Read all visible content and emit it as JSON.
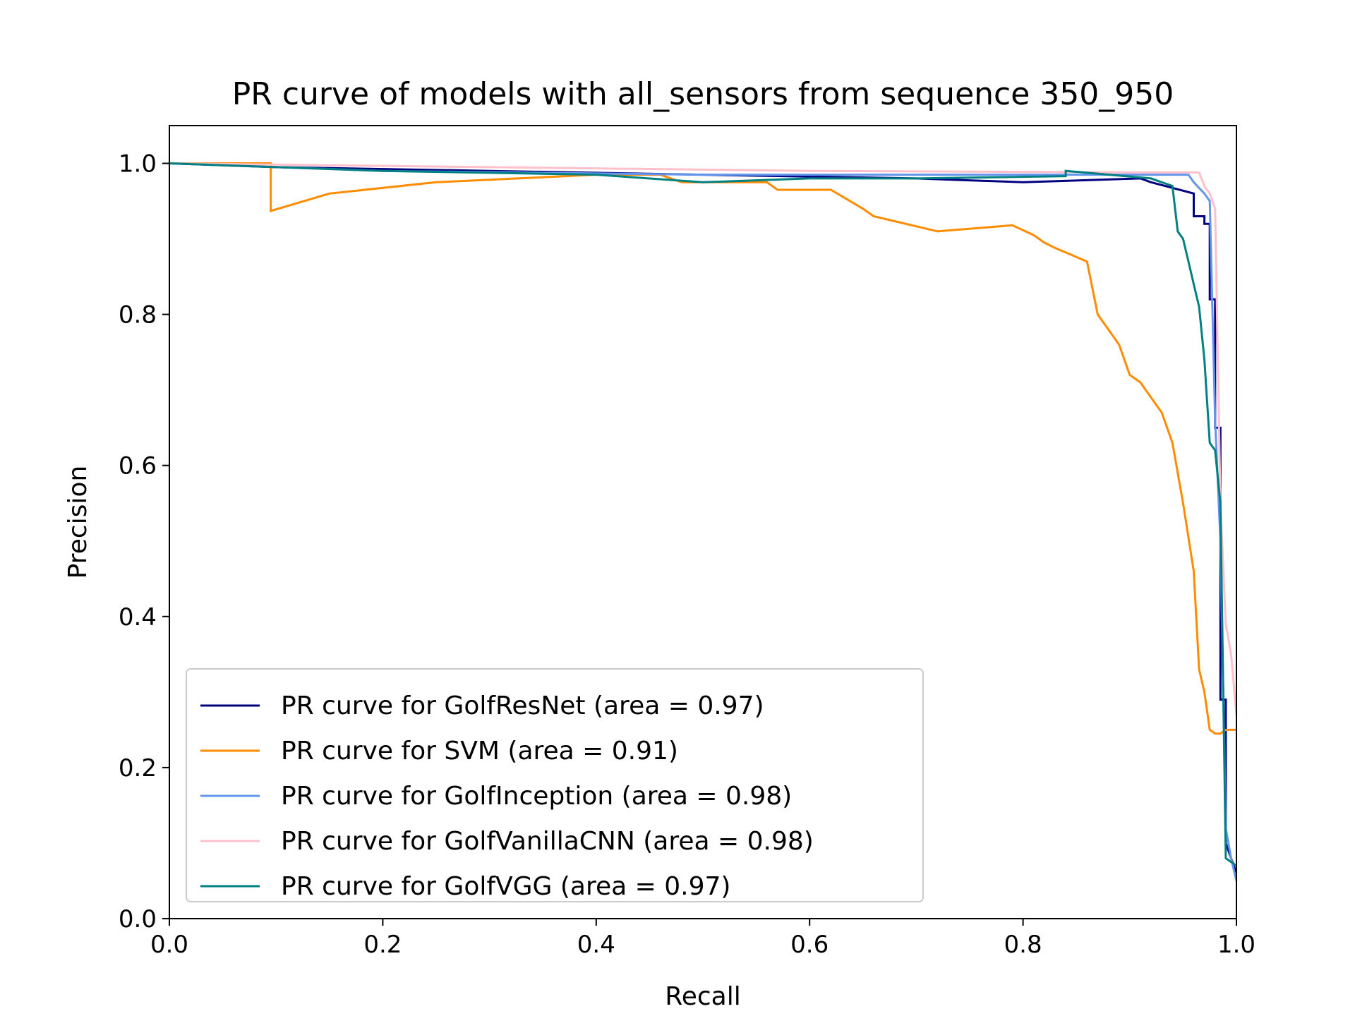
{
  "chart_data": {
    "type": "line",
    "title": "PR curve of models with all_sensors from sequence 350_950",
    "xlabel": "Recall",
    "ylabel": "Precision",
    "xlim": [
      0,
      1
    ],
    "ylim": [
      0,
      1.05
    ],
    "xticks": [
      0,
      0.2,
      0.4,
      0.6,
      0.8,
      1.0
    ],
    "xtick_labels": [
      "0.0",
      "0.2",
      "0.4",
      "0.6",
      "0.8",
      "1.0"
    ],
    "yticks": [
      0,
      0.2,
      0.4,
      0.6,
      0.8,
      1.0
    ],
    "ytick_labels": [
      "0.0",
      "0.2",
      "0.4",
      "0.6",
      "0.8",
      "1.0"
    ],
    "grid": false,
    "legend_position": "lower-left",
    "series": [
      {
        "name": "PR curve for GolfResNet (area = 0.97)",
        "color": "#000080",
        "x": [
          0.0,
          0.1,
          0.3,
          0.5,
          0.7,
          0.8,
          0.91,
          0.92,
          0.96,
          0.96,
          0.97,
          0.97,
          0.975,
          0.975,
          0.98,
          0.98,
          0.985,
          0.985,
          0.99,
          0.99,
          1.0
        ],
        "y": [
          1.0,
          0.995,
          0.99,
          0.985,
          0.98,
          0.975,
          0.98,
          0.975,
          0.96,
          0.93,
          0.93,
          0.92,
          0.92,
          0.82,
          0.82,
          0.65,
          0.65,
          0.29,
          0.29,
          0.1,
          0.06
        ]
      },
      {
        "name": "PR curve for SVM (area = 0.91)",
        "color": "#ff8c00",
        "x": [
          0.0,
          0.095,
          0.095,
          0.15,
          0.25,
          0.4,
          0.46,
          0.47,
          0.48,
          0.56,
          0.57,
          0.62,
          0.65,
          0.66,
          0.72,
          0.79,
          0.81,
          0.82,
          0.83,
          0.86,
          0.87,
          0.88,
          0.89,
          0.9,
          0.91,
          0.92,
          0.93,
          0.94,
          0.95,
          0.96,
          0.965,
          0.97,
          0.975,
          0.98,
          0.985,
          0.99,
          1.0
        ],
        "y": [
          1.0,
          1.0,
          0.937,
          0.96,
          0.975,
          0.985,
          0.985,
          0.98,
          0.975,
          0.975,
          0.965,
          0.965,
          0.94,
          0.93,
          0.91,
          0.918,
          0.905,
          0.895,
          0.888,
          0.87,
          0.8,
          0.78,
          0.76,
          0.72,
          0.71,
          0.69,
          0.67,
          0.63,
          0.55,
          0.46,
          0.33,
          0.3,
          0.25,
          0.245,
          0.245,
          0.25,
          0.25
        ]
      },
      {
        "name": "PR curve for GolfInception (area = 0.98)",
        "color": "#6495ed",
        "x": [
          0.0,
          0.2,
          0.5,
          0.8,
          0.9,
          0.94,
          0.955,
          0.96,
          0.97,
          0.975,
          0.98,
          0.985,
          0.99,
          0.995,
          1.0
        ],
        "y": [
          1.0,
          0.99,
          0.985,
          0.985,
          0.985,
          0.985,
          0.985,
          0.975,
          0.96,
          0.95,
          0.66,
          0.5,
          0.12,
          0.08,
          0.05
        ]
      },
      {
        "name": "PR curve for GolfVanillaCNN (area = 0.98)",
        "color": "#ffc0cb",
        "x": [
          0.0,
          0.3,
          0.6,
          0.9,
          0.95,
          0.965,
          0.97,
          0.975,
          0.98,
          0.985,
          0.99,
          0.995,
          1.0
        ],
        "y": [
          1.0,
          0.995,
          0.99,
          0.988,
          0.988,
          0.988,
          0.97,
          0.96,
          0.94,
          0.55,
          0.39,
          0.35,
          0.27
        ]
      },
      {
        "name": "PR curve for GolfVGG (area = 0.97)",
        "color": "#008080",
        "x": [
          0.0,
          0.2,
          0.4,
          0.5,
          0.6,
          0.7,
          0.84,
          0.84,
          0.92,
          0.93,
          0.94,
          0.945,
          0.95,
          0.955,
          0.96,
          0.965,
          0.97,
          0.975,
          0.98,
          0.985,
          0.99,
          1.0
        ],
        "y": [
          1.0,
          0.99,
          0.985,
          0.975,
          0.98,
          0.98,
          0.983,
          0.99,
          0.98,
          0.975,
          0.97,
          0.91,
          0.9,
          0.87,
          0.84,
          0.81,
          0.74,
          0.63,
          0.62,
          0.55,
          0.08,
          0.07
        ]
      }
    ]
  }
}
